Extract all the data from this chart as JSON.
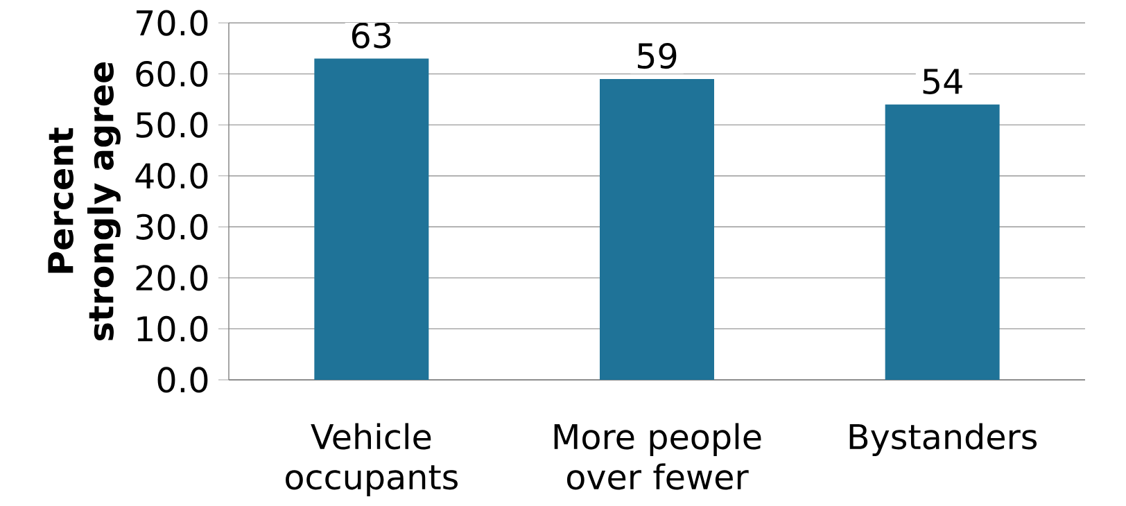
{
  "chart_data": {
    "type": "bar",
    "ylabel": "Percent strongly agree",
    "categories": [
      "Vehicle occupants",
      "More people over fewer",
      "Bystanders"
    ],
    "values": [
      63,
      59,
      54
    ],
    "color": "#1f7398",
    "data_labels": true,
    "grid": "y",
    "ylim": [
      0,
      70
    ],
    "yticks": [
      {
        "value": 0,
        "label": "0.0"
      },
      {
        "value": 10,
        "label": "10.0"
      },
      {
        "value": 20,
        "label": "20.0"
      },
      {
        "value": 30,
        "label": "30.0"
      },
      {
        "value": 40,
        "label": "40.0"
      },
      {
        "value": 50,
        "label": "50.0"
      },
      {
        "value": 60,
        "label": "60.0"
      },
      {
        "value": 70,
        "label": "70.0"
      }
    ]
  }
}
